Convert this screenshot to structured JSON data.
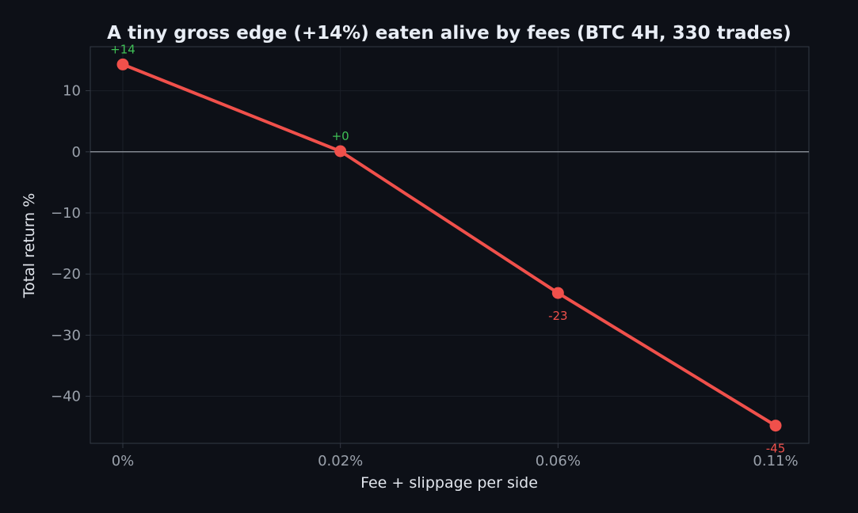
{
  "chart_data": {
    "type": "line",
    "title": "A tiny gross edge (+14%) eaten alive by fees (BTC 4H, 330 trades)",
    "xlabel": "Fee + slippage per side",
    "ylabel": "Total return %",
    "categories": [
      "0%",
      "0.02%",
      "0.06%",
      "0.11%"
    ],
    "series": [
      {
        "values": [
          14.3,
          0.1,
          -23.1,
          -44.8
        ],
        "data_labels": [
          "+14",
          "+0",
          "-23",
          "-45"
        ]
      }
    ],
    "ylim": [
      -47.7,
      17.2
    ],
    "yticks": [
      10,
      0,
      -10,
      -20,
      -30,
      -40
    ],
    "ytick_labels": [
      "10",
      "0",
      "−10",
      "−20",
      "−30",
      "−40"
    ],
    "grid": true,
    "zero_line": true,
    "colors": {
      "background": "#0d1017",
      "line": "#f0504b",
      "positive_label": "#3fbf55",
      "negative_label": "#f0504b",
      "title": "#e8edf5",
      "axis_label": "#e1e5ec",
      "tick_label": "#9aa1ab",
      "grid": "#1b1f28",
      "spine": "#343a45",
      "zero_line": "#9aa0a8"
    }
  }
}
